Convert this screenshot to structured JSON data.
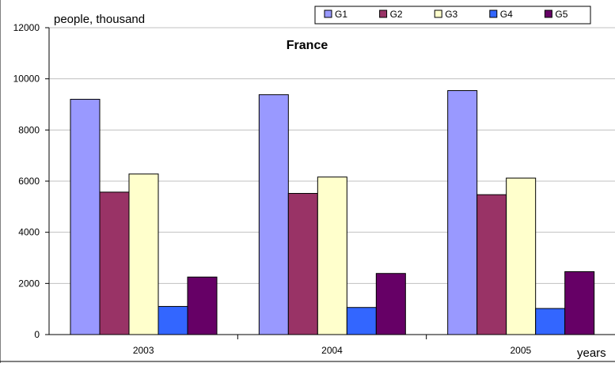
{
  "chart_data": {
    "type": "bar",
    "title": "France",
    "ylabel": "people, thousand",
    "xlabel": "years",
    "categories": [
      "2003",
      "2004",
      "2005"
    ],
    "ylim": [
      0,
      12000
    ],
    "yticks": [
      "0",
      "2000",
      "4000",
      "6000",
      "8000",
      "10000",
      "12000"
    ],
    "grid": true,
    "legend_position": "top-right",
    "series": [
      {
        "name": "G1",
        "color": "#9999ff",
        "values": [
          9200,
          9380,
          9540
        ]
      },
      {
        "name": "G2",
        "color": "#993366",
        "values": [
          5570,
          5520,
          5470
        ]
      },
      {
        "name": "G3",
        "color": "#ffffcc",
        "values": [
          6280,
          6160,
          6120
        ]
      },
      {
        "name": "G4",
        "color": "#3366ff",
        "values": [
          1100,
          1060,
          1020
        ]
      },
      {
        "name": "G5",
        "color": "#660066",
        "values": [
          2250,
          2390,
          2460
        ]
      }
    ]
  }
}
